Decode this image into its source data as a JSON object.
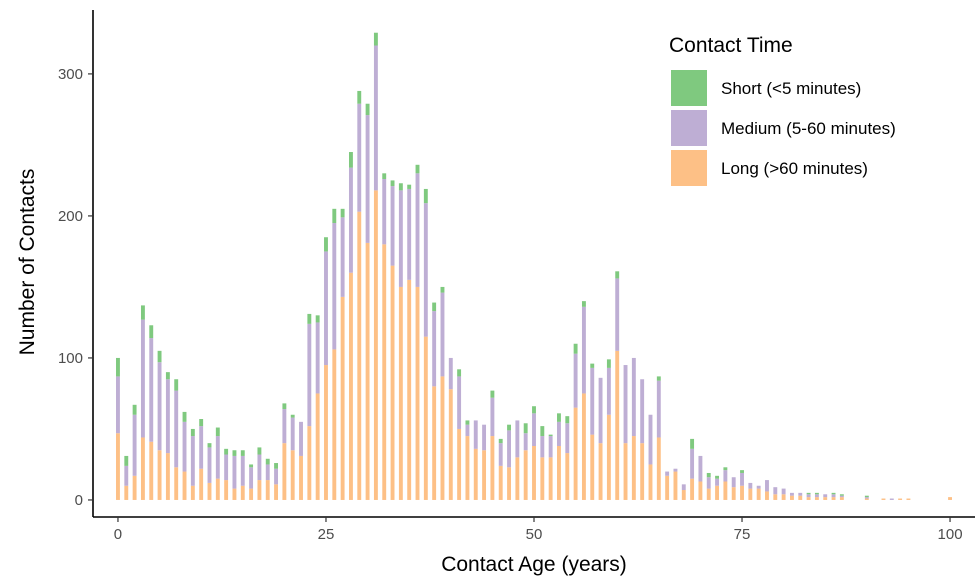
{
  "chart_data": {
    "type": "bar",
    "stacked": true,
    "xlabel": "Contact Age (years)",
    "ylabel": "Number of Contacts",
    "xlim": [
      -3,
      103
    ],
    "ylim": [
      -12,
      345
    ],
    "x_ticks": [
      0,
      25,
      50,
      75,
      100
    ],
    "y_ticks": [
      0,
      100,
      200,
      300
    ],
    "grid": false,
    "legend": {
      "title": "Contact Time",
      "position": "top-right"
    },
    "x": [
      0,
      1,
      2,
      3,
      4,
      5,
      6,
      7,
      8,
      9,
      10,
      11,
      12,
      13,
      14,
      15,
      16,
      17,
      18,
      19,
      20,
      21,
      22,
      23,
      24,
      25,
      26,
      27,
      28,
      29,
      30,
      31,
      32,
      33,
      34,
      35,
      36,
      37,
      38,
      39,
      40,
      41,
      42,
      43,
      44,
      45,
      46,
      47,
      48,
      49,
      50,
      51,
      52,
      53,
      54,
      55,
      56,
      57,
      58,
      59,
      60,
      61,
      62,
      63,
      64,
      65,
      66,
      67,
      68,
      69,
      70,
      71,
      72,
      73,
      74,
      75,
      76,
      77,
      78,
      79,
      80,
      81,
      82,
      83,
      84,
      85,
      86,
      87,
      88,
      89,
      90,
      91,
      92,
      93,
      94,
      95,
      96,
      97,
      98,
      99,
      100
    ],
    "series": [
      {
        "name": "Long (>60 minutes)",
        "color": "#FDC086",
        "values": [
          47,
          10,
          17,
          44,
          41,
          35,
          33,
          23,
          20,
          10,
          22,
          12,
          15,
          14,
          8,
          10,
          8,
          14,
          14,
          11,
          40,
          35,
          31,
          52,
          75,
          95,
          106,
          143,
          160,
          203,
          181,
          218,
          180,
          165,
          150,
          155,
          150,
          115,
          80,
          87,
          78,
          50,
          45,
          36,
          35,
          45,
          24,
          23,
          30,
          35,
          38,
          30,
          30,
          38,
          33,
          65,
          75,
          46,
          40,
          60,
          105,
          40,
          45,
          40,
          25,
          44,
          17,
          20,
          7,
          15,
          13,
          8,
          10,
          13,
          9,
          10,
          8,
          8,
          6,
          4,
          4,
          3,
          3,
          2,
          2,
          2,
          2,
          2,
          0,
          0,
          1,
          0,
          1,
          0,
          1,
          1,
          0,
          0,
          0,
          0,
          2
        ]
      },
      {
        "name": "Medium (5-60 minutes)",
        "color": "#BEAED4",
        "values": [
          40,
          14,
          43,
          83,
          73,
          62,
          52,
          54,
          35,
          35,
          30,
          25,
          30,
          18,
          23,
          21,
          15,
          18,
          11,
          11,
          24,
          23,
          24,
          72,
          50,
          80,
          89,
          56,
          74,
          76,
          90,
          102,
          46,
          56,
          68,
          64,
          80,
          94,
          53,
          59,
          22,
          37,
          8,
          20,
          18,
          27,
          16,
          26,
          26,
          12,
          23,
          15,
          15,
          17,
          21,
          38,
          61,
          47,
          46,
          33,
          51,
          55,
          55,
          45,
          35,
          40,
          3,
          2,
          4,
          21,
          18,
          8,
          5,
          8,
          7,
          9,
          4,
          2,
          8,
          5,
          4,
          2,
          2,
          2,
          2,
          2,
          2,
          1,
          0,
          0,
          1,
          0,
          0,
          1,
          0,
          0,
          0,
          0,
          0,
          0,
          0
        ]
      },
      {
        "name": "Short (<5 minutes)",
        "color": "#7FC97F",
        "values": [
          13,
          7,
          7,
          10,
          9,
          8,
          5,
          8,
          7,
          5,
          5,
          3,
          6,
          4,
          4,
          4,
          2,
          5,
          4,
          4,
          4,
          2,
          0,
          7,
          5,
          10,
          10,
          6,
          11,
          9,
          8,
          9,
          4,
          4,
          5,
          3,
          6,
          10,
          6,
          4,
          0,
          5,
          3,
          0,
          0,
          5,
          3,
          4,
          0,
          7,
          5,
          7,
          1,
          6,
          5,
          7,
          4,
          3,
          0,
          6,
          5,
          0,
          0,
          0,
          0,
          3,
          0,
          0,
          0,
          7,
          0,
          3,
          2,
          2,
          0,
          2,
          0,
          0,
          0,
          0,
          0,
          0,
          0,
          1,
          1,
          0,
          1,
          1,
          0,
          0,
          1,
          0,
          0,
          0,
          0,
          0,
          0,
          0,
          0,
          0,
          0
        ]
      }
    ]
  }
}
